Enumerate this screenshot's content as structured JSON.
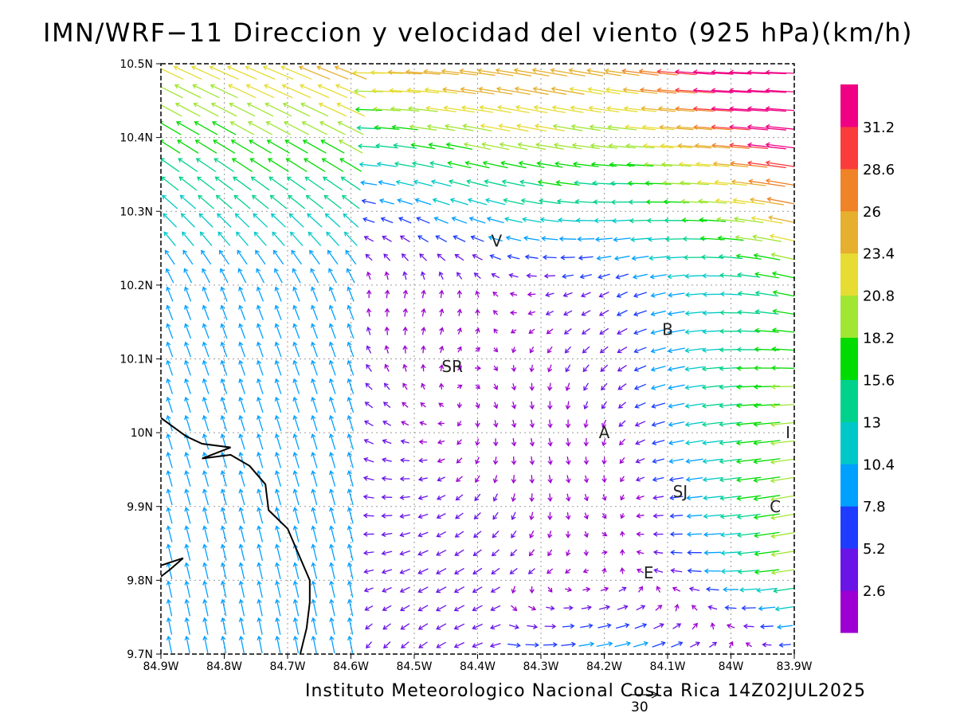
{
  "title": "IMN/WRF−11 Direccion y velocidad del viento (925 hPa)(km/h)",
  "footer": "Instituto Meteorologico Nacional Costa Rica 14Z02JUL2025",
  "axes": {
    "x_ticks": [
      "84.9W",
      "84.8W",
      "84.7W",
      "84.6W",
      "84.5W",
      "84.4W",
      "84.3W",
      "84.2W",
      "84.1W",
      "84W",
      "83.9W"
    ],
    "y_ticks": [
      "9.7N",
      "9.8N",
      "9.9N",
      "10N",
      "10.1N",
      "10.2N",
      "10.3N",
      "10.4N",
      "10.5N"
    ],
    "lon_range": [
      -84.9,
      -83.9
    ],
    "lat_range": [
      9.7,
      10.5
    ]
  },
  "legend": {
    "labels": [
      "2.6",
      "5.2",
      "7.8",
      "10.4",
      "13",
      "15.6",
      "18.2",
      "20.8",
      "23.4",
      "26",
      "28.6",
      "31.2"
    ],
    "colors": [
      "#9c00d2",
      "#6a14e8",
      "#1e3cff",
      "#00a0ff",
      "#00c8c8",
      "#00d28c",
      "#00dc00",
      "#a0e632",
      "#e6dc32",
      "#e6af2d",
      "#f08228",
      "#fa3c3c",
      "#f00082"
    ]
  },
  "reference_vector": {
    "label": "30"
  },
  "places": [
    {
      "label": "V",
      "lon": -84.37,
      "lat": 10.26
    },
    {
      "label": "B",
      "lon": -84.1,
      "lat": 10.14
    },
    {
      "label": "SR",
      "lon": -84.44,
      "lat": 10.09
    },
    {
      "label": "A",
      "lon": -84.2,
      "lat": 10.0
    },
    {
      "label": "I",
      "lon": -83.91,
      "lat": 10.0
    },
    {
      "label": "SJ",
      "lon": -84.08,
      "lat": 9.92
    },
    {
      "label": "C",
      "lon": -83.93,
      "lat": 9.9
    },
    {
      "label": "E",
      "lon": -84.13,
      "lat": 9.81
    }
  ],
  "coastline": [
    {
      "lon": -84.9,
      "lat": 10.02
    },
    {
      "lon": -84.86,
      "lat": 9.995
    },
    {
      "lon": -84.835,
      "lat": 9.985
    },
    {
      "lon": -84.79,
      "lat": 9.98
    },
    {
      "lon": -84.835,
      "lat": 9.965
    },
    {
      "lon": -84.79,
      "lat": 9.97
    },
    {
      "lon": -84.76,
      "lat": 9.955
    },
    {
      "lon": -84.735,
      "lat": 9.93
    },
    {
      "lon": -84.73,
      "lat": 9.895
    },
    {
      "lon": -84.7,
      "lat": 9.87
    },
    {
      "lon": -84.665,
      "lat": 9.8
    },
    {
      "lon": -84.665,
      "lat": 9.77
    },
    {
      "lon": -84.67,
      "lat": 9.735
    },
    {
      "lon": -84.68,
      "lat": 9.7
    }
  ],
  "islet": [
    {
      "lon": -84.9,
      "lat": 9.82
    },
    {
      "lon": -84.865,
      "lat": 9.83
    },
    {
      "lon": -84.885,
      "lat": 9.815
    },
    {
      "lon": -84.9,
      "lat": 9.805
    }
  ]
}
